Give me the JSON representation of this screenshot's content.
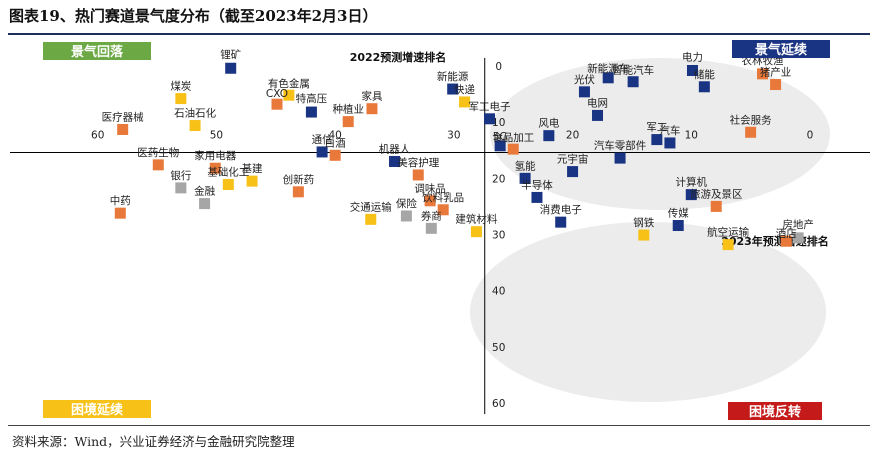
{
  "title": "图表19、热门赛道景气度分布（截至2023年2月3日）",
  "source": "资料来源：Wind，兴业证券经济与金融研究院整理",
  "colors": {
    "navy": "#1a3484",
    "orange": "#e8793a",
    "yellow": "#f7c118",
    "gray": "#a6a6a6",
    "green": "#6ca844",
    "red": "#c41a1a",
    "ellipse": "#ececec"
  },
  "quadrants": {
    "top_left": "景气回落",
    "top_right": "景气延续",
    "bottom_left": "困境延续",
    "bottom_right": "困境反转"
  },
  "chart_data": {
    "type": "scatter",
    "xlabel": "2022预测增速排名",
    "ylabel": "2023年预测增速排名",
    "xlim": [
      62,
      0
    ],
    "ylim": [
      0,
      60
    ],
    "x_ticks": [
      "60",
      "50",
      "40",
      "30",
      "20",
      "10",
      "0"
    ],
    "y_ticks": [
      "0",
      "10",
      "20",
      "30",
      "40",
      "50",
      "60"
    ],
    "points": [
      {
        "name": "锂矿",
        "x": 48.8,
        "y": 0.4,
        "color": "navy"
      },
      {
        "name": "电力",
        "x": 9.9,
        "y": 0.8,
        "color": "navy"
      },
      {
        "name": "农林牧渔",
        "x": 4.0,
        "y": 1.4,
        "color": "orange"
      },
      {
        "name": "新能源车",
        "x": 17.0,
        "y": 2.1,
        "color": "navy"
      },
      {
        "name": "智能汽车",
        "x": 14.9,
        "y": 2.8,
        "color": "navy"
      },
      {
        "name": "猪产业",
        "x": 2.9,
        "y": 3.3,
        "color": "orange"
      },
      {
        "name": "储能",
        "x": 8.9,
        "y": 3.7,
        "color": "navy"
      },
      {
        "name": "新能源",
        "x": 30.1,
        "y": 4.1,
        "color": "navy"
      },
      {
        "name": "光伏",
        "x": 19.0,
        "y": 4.6,
        "color": "navy"
      },
      {
        "name": "有色金属",
        "x": 43.9,
        "y": 5.2,
        "color": "yellow"
      },
      {
        "name": "煤炭",
        "x": 53.0,
        "y": 5.8,
        "color": "yellow"
      },
      {
        "name": "快递",
        "x": 29.1,
        "y": 6.4,
        "color": "yellow"
      },
      {
        "name": "CXO",
        "x": 44.9,
        "y": 6.8,
        "color": "orange"
      },
      {
        "name": "家具",
        "x": 36.9,
        "y": 7.6,
        "color": "orange"
      },
      {
        "name": "特高压",
        "x": 42.0,
        "y": 8.2,
        "color": "navy"
      },
      {
        "name": "电网",
        "x": 17.9,
        "y": 8.8,
        "color": "navy"
      },
      {
        "name": "军工电子",
        "x": 27.0,
        "y": 9.4,
        "color": "navy"
      },
      {
        "name": "种植业",
        "x": 38.9,
        "y": 9.9,
        "color": "orange"
      },
      {
        "name": "石油石化",
        "x": 51.8,
        "y": 10.6,
        "color": "yellow"
      },
      {
        "name": "医疗器械",
        "x": 57.9,
        "y": 11.3,
        "color": "orange"
      },
      {
        "name": "社会服务",
        "x": 5.0,
        "y": 11.8,
        "color": "orange"
      },
      {
        "name": "风电",
        "x": 22.0,
        "y": 12.4,
        "color": "navy"
      },
      {
        "name": "军工",
        "x": 12.9,
        "y": 13.1,
        "color": "navy"
      },
      {
        "name": "汽车",
        "x": 11.8,
        "y": 13.7,
        "color": "navy"
      },
      {
        "name": "5G",
        "x": 26.1,
        "y": 14.2,
        "color": "navy"
      },
      {
        "name": "食品加工",
        "x": 25.0,
        "y": 14.8,
        "color": "orange"
      },
      {
        "name": "通信",
        "x": 41.1,
        "y": 15.3,
        "color": "navy"
      },
      {
        "name": "白酒",
        "x": 40.0,
        "y": 15.9,
        "color": "orange"
      },
      {
        "name": "汽车零部件",
        "x": 16.0,
        "y": 16.4,
        "color": "navy"
      },
      {
        "name": "机器人",
        "x": 35.0,
        "y": 17.0,
        "color": "navy"
      },
      {
        "name": "医药生物",
        "x": 54.9,
        "y": 17.6,
        "color": "orange"
      },
      {
        "name": "家用电器",
        "x": 50.1,
        "y": 18.2,
        "color": "orange"
      },
      {
        "name": "元宇宙",
        "x": 20.0,
        "y": 18.8,
        "color": "navy"
      },
      {
        "name": "美容护理",
        "x": 33.0,
        "y": 19.4,
        "color": "orange"
      },
      {
        "name": "氢能",
        "x": 24.0,
        "y": 20.0,
        "color": "navy"
      },
      {
        "name": "基建",
        "x": 47.0,
        "y": 20.5,
        "color": "yellow"
      },
      {
        "name": "基础化工",
        "x": 49.0,
        "y": 21.1,
        "color": "yellow"
      },
      {
        "name": "银行",
        "x": 53.0,
        "y": 21.7,
        "color": "gray"
      },
      {
        "name": "创新药",
        "x": 43.1,
        "y": 22.4,
        "color": "orange"
      },
      {
        "name": "计算机",
        "x": 10.0,
        "y": 22.9,
        "color": "navy"
      },
      {
        "name": "半导体",
        "x": 23.0,
        "y": 23.4,
        "color": "navy"
      },
      {
        "name": "调味品",
        "x": 32.0,
        "y": 24.0,
        "color": "orange"
      },
      {
        "name": "金融",
        "x": 51.0,
        "y": 24.5,
        "color": "gray"
      },
      {
        "name": "旅游及景区",
        "x": 7.9,
        "y": 25.0,
        "color": "orange"
      },
      {
        "name": "饮料乳品",
        "x": 30.9,
        "y": 25.6,
        "color": "orange"
      },
      {
        "name": "中药",
        "x": 58.1,
        "y": 26.2,
        "color": "orange"
      },
      {
        "name": "保险",
        "x": 34.0,
        "y": 26.7,
        "color": "gray"
      },
      {
        "name": "交通运输",
        "x": 37.0,
        "y": 27.3,
        "color": "yellow"
      },
      {
        "name": "消费电子",
        "x": 21.0,
        "y": 27.8,
        "color": "navy"
      },
      {
        "name": "传媒",
        "x": 11.1,
        "y": 28.4,
        "color": "navy"
      },
      {
        "name": "券商",
        "x": 31.9,
        "y": 28.9,
        "color": "gray"
      },
      {
        "name": "建筑材料",
        "x": 28.1,
        "y": 29.5,
        "color": "yellow"
      },
      {
        "name": "钢铁",
        "x": 14.0,
        "y": 30.1,
        "color": "yellow"
      },
      {
        "name": "房地产",
        "x": 1.0,
        "y": 30.6,
        "color": "gray"
      },
      {
        "name": "酒店",
        "x": 2.0,
        "y": 31.2,
        "color": "orange"
      },
      {
        "name": "航空运输",
        "x": 6.9,
        "y": 31.8,
        "color": "yellow"
      }
    ]
  }
}
